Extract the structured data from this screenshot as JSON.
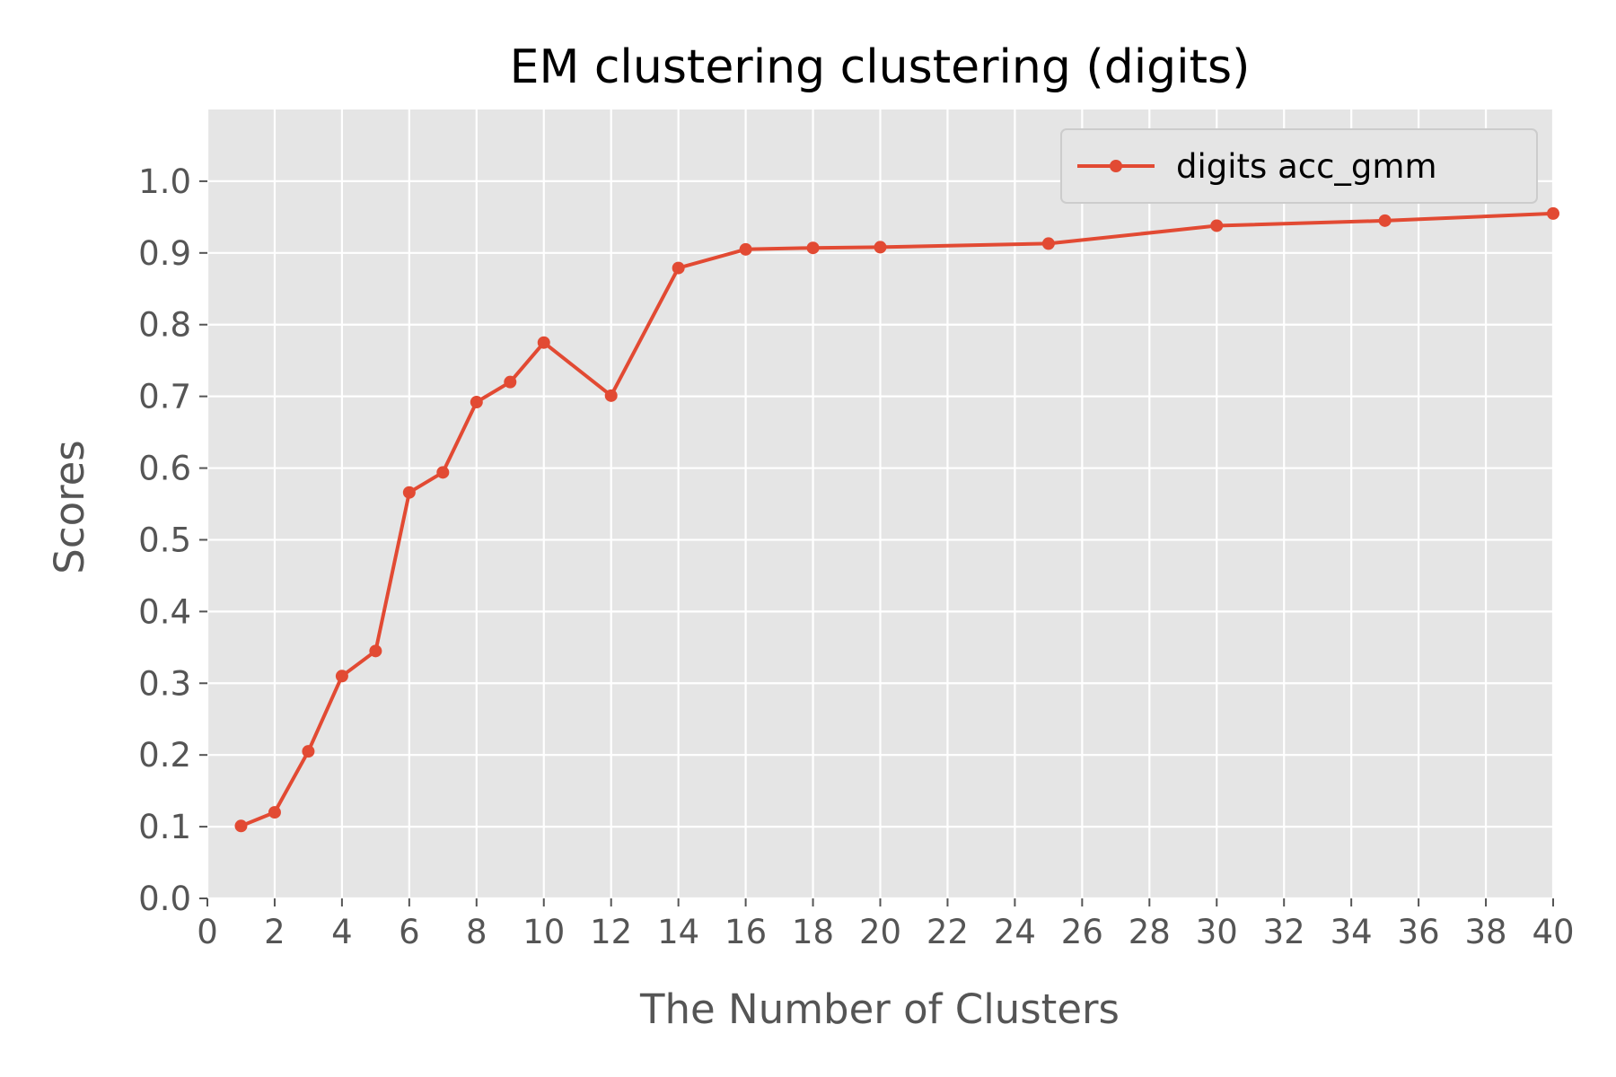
{
  "chart_data": {
    "type": "line",
    "title": "EM clustering clustering (digits)",
    "xlabel": "The Number of Clusters",
    "ylabel": "Scores",
    "xlim": [
      0,
      40
    ],
    "ylim": [
      0,
      1.1
    ],
    "x_ticks": [
      0,
      2,
      4,
      6,
      8,
      10,
      12,
      14,
      16,
      18,
      20,
      22,
      24,
      26,
      28,
      30,
      32,
      34,
      36,
      38,
      40
    ],
    "y_ticks": [
      0.0,
      0.1,
      0.2,
      0.3,
      0.4,
      0.5,
      0.6,
      0.7,
      0.8,
      0.9,
      1.0
    ],
    "grid": true,
    "legend_position": "top-right",
    "series": [
      {
        "name": "digits acc_gmm",
        "color": "#e24a33",
        "x": [
          1,
          2,
          3,
          4,
          5,
          6,
          7,
          8,
          9,
          10,
          12,
          14,
          16,
          18,
          20,
          25,
          30,
          35,
          40
        ],
        "y": [
          0.101,
          0.12,
          0.205,
          0.31,
          0.345,
          0.566,
          0.594,
          0.692,
          0.72,
          0.775,
          0.701,
          0.879,
          0.905,
          0.907,
          0.908,
          0.913,
          0.938,
          0.945,
          0.955
        ]
      }
    ]
  },
  "colors": {
    "plot_background": "#e5e5e5",
    "grid": "#ffffff",
    "text": "#555555",
    "title": "#000000"
  }
}
